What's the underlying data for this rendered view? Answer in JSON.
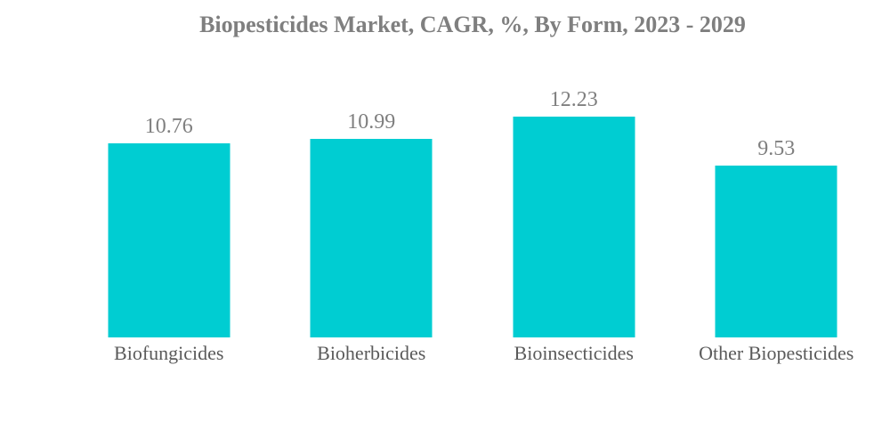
{
  "title": "Biopesticides Market, CAGR, %, By Form, 2023 - 2029",
  "colors": {
    "bar": "#00CDD2",
    "title_text": "#7F7F7F",
    "value_label_text": "#7F7F7F",
    "category_label_text": "#5A5A5A",
    "background": "#FFFFFF"
  },
  "chart_data": {
    "type": "bar",
    "title": "Biopesticides Market, CAGR, %, By Form, 2023 - 2029",
    "categories": [
      "Biofungicides",
      "Bioherbicides",
      "Bioinsecticides",
      "Other Biopesticides"
    ],
    "values": [
      10.76,
      10.99,
      12.23,
      9.53
    ],
    "xlabel": "",
    "ylabel": "",
    "ylim": [
      0,
      12.23
    ],
    "grid": false,
    "legend": false,
    "axes_visible": false,
    "value_labels_position": "above-bar",
    "bar_color": "#00CDD2"
  }
}
